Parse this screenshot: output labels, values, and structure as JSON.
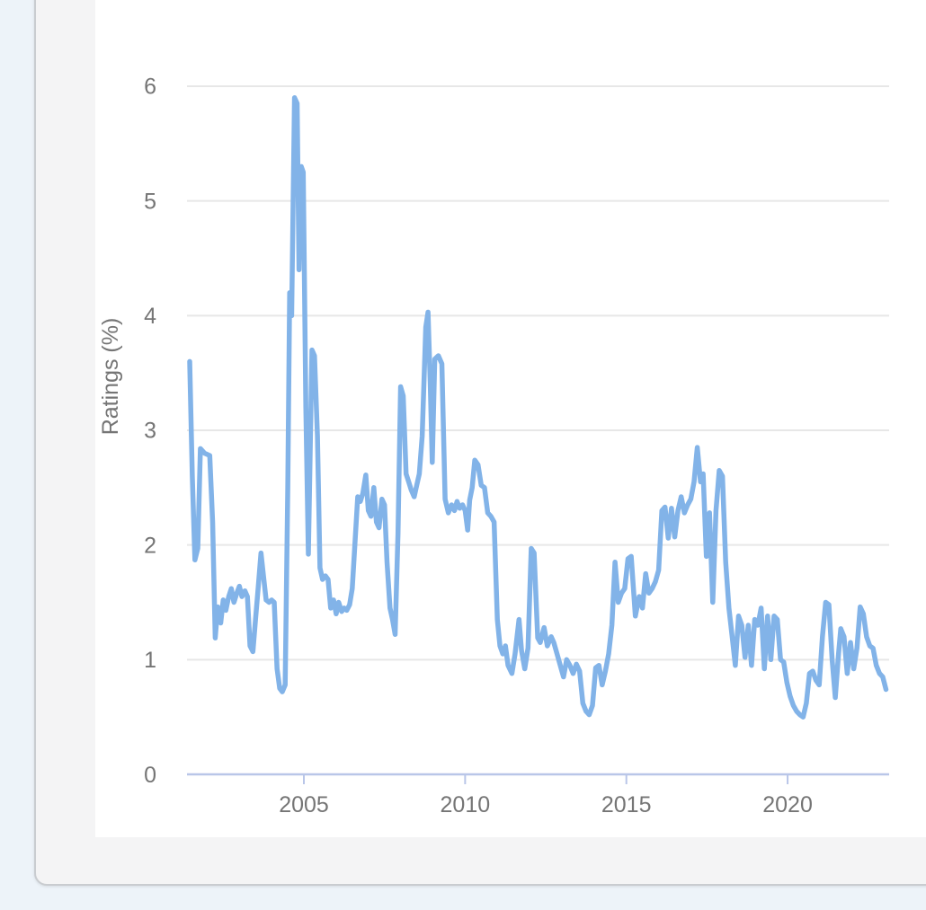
{
  "page": {
    "background": "#edf3f9"
  },
  "card": {
    "background": "#f4f4f5",
    "border_color": "#c9ccd0"
  },
  "panel": {
    "background": "#ffffff"
  },
  "chart_data": {
    "type": "line",
    "title": "",
    "xlabel": "",
    "ylabel": "Ratings (%)",
    "x_range": [
      2001.3,
      2023.15
    ],
    "ylim": [
      0,
      6.3
    ],
    "grid": "horizontal",
    "legend": "none",
    "y_tick_labels": [
      "0",
      "1",
      "2",
      "3",
      "4",
      "5",
      "6"
    ],
    "y_tick_values": [
      0,
      1,
      2,
      3,
      4,
      5,
      6
    ],
    "x_tick_labels": [
      "2005",
      "2010",
      "2015",
      "2020"
    ],
    "x_tick_values": [
      2005,
      2010,
      2015,
      2020
    ],
    "colors": {
      "line": "#82b3e8",
      "axis": "#b9c6e8",
      "grid": "#e7e7e7",
      "text": "#757575"
    },
    "series": [
      {
        "name": "Ratings (%)",
        "points": [
          [
            2001.46,
            3.6
          ],
          [
            2001.54,
            2.6
          ],
          [
            2001.62,
            1.87
          ],
          [
            2001.71,
            1.97
          ],
          [
            2001.79,
            2.84
          ],
          [
            2001.92,
            2.8
          ],
          [
            2002.08,
            2.78
          ],
          [
            2002.17,
            2.2
          ],
          [
            2002.25,
            1.19
          ],
          [
            2002.33,
            1.46
          ],
          [
            2002.42,
            1.32
          ],
          [
            2002.5,
            1.52
          ],
          [
            2002.58,
            1.43
          ],
          [
            2002.67,
            1.55
          ],
          [
            2002.75,
            1.62
          ],
          [
            2002.83,
            1.5
          ],
          [
            2002.92,
            1.58
          ],
          [
            2003.0,
            1.64
          ],
          [
            2003.08,
            1.55
          ],
          [
            2003.17,
            1.6
          ],
          [
            2003.25,
            1.55
          ],
          [
            2003.33,
            1.12
          ],
          [
            2003.42,
            1.07
          ],
          [
            2003.5,
            1.35
          ],
          [
            2003.58,
            1.62
          ],
          [
            2003.67,
            1.93
          ],
          [
            2003.75,
            1.72
          ],
          [
            2003.83,
            1.52
          ],
          [
            2003.92,
            1.5
          ],
          [
            2004.0,
            1.52
          ],
          [
            2004.08,
            1.5
          ],
          [
            2004.17,
            0.92
          ],
          [
            2004.25,
            0.75
          ],
          [
            2004.33,
            0.72
          ],
          [
            2004.42,
            0.78
          ],
          [
            2004.5,
            2.5
          ],
          [
            2004.56,
            4.2
          ],
          [
            2004.62,
            4.0
          ],
          [
            2004.71,
            5.9
          ],
          [
            2004.79,
            5.85
          ],
          [
            2004.85,
            4.4
          ],
          [
            2004.92,
            5.3
          ],
          [
            2004.98,
            5.25
          ],
          [
            2005.06,
            3.2
          ],
          [
            2005.14,
            1.92
          ],
          [
            2005.25,
            3.7
          ],
          [
            2005.33,
            3.65
          ],
          [
            2005.42,
            2.95
          ],
          [
            2005.5,
            1.8
          ],
          [
            2005.58,
            1.7
          ],
          [
            2005.67,
            1.73
          ],
          [
            2005.75,
            1.7
          ],
          [
            2005.83,
            1.45
          ],
          [
            2005.92,
            1.52
          ],
          [
            2006.0,
            1.4
          ],
          [
            2006.08,
            1.5
          ],
          [
            2006.17,
            1.42
          ],
          [
            2006.25,
            1.45
          ],
          [
            2006.33,
            1.43
          ],
          [
            2006.42,
            1.48
          ],
          [
            2006.5,
            1.62
          ],
          [
            2006.58,
            2.0
          ],
          [
            2006.67,
            2.42
          ],
          [
            2006.75,
            2.38
          ],
          [
            2006.83,
            2.45
          ],
          [
            2006.92,
            2.61
          ],
          [
            2007.0,
            2.3
          ],
          [
            2007.08,
            2.25
          ],
          [
            2007.17,
            2.5
          ],
          [
            2007.25,
            2.2
          ],
          [
            2007.33,
            2.15
          ],
          [
            2007.42,
            2.4
          ],
          [
            2007.5,
            2.35
          ],
          [
            2007.58,
            1.85
          ],
          [
            2007.67,
            1.45
          ],
          [
            2007.75,
            1.35
          ],
          [
            2007.83,
            1.22
          ],
          [
            2007.92,
            2.1
          ],
          [
            2008.0,
            3.38
          ],
          [
            2008.08,
            3.3
          ],
          [
            2008.17,
            2.62
          ],
          [
            2008.25,
            2.55
          ],
          [
            2008.33,
            2.48
          ],
          [
            2008.42,
            2.42
          ],
          [
            2008.5,
            2.52
          ],
          [
            2008.58,
            2.62
          ],
          [
            2008.67,
            2.95
          ],
          [
            2008.78,
            3.9
          ],
          [
            2008.85,
            4.03
          ],
          [
            2008.92,
            3.4
          ],
          [
            2008.98,
            2.72
          ],
          [
            2009.06,
            3.62
          ],
          [
            2009.17,
            3.65
          ],
          [
            2009.28,
            3.58
          ],
          [
            2009.38,
            2.4
          ],
          [
            2009.48,
            2.28
          ],
          [
            2009.58,
            2.35
          ],
          [
            2009.67,
            2.3
          ],
          [
            2009.75,
            2.38
          ],
          [
            2009.83,
            2.32
          ],
          [
            2009.92,
            2.35
          ],
          [
            2010.0,
            2.3
          ],
          [
            2010.08,
            2.13
          ],
          [
            2010.14,
            2.39
          ],
          [
            2010.22,
            2.5
          ],
          [
            2010.3,
            2.74
          ],
          [
            2010.4,
            2.7
          ],
          [
            2010.5,
            2.52
          ],
          [
            2010.6,
            2.5
          ],
          [
            2010.7,
            2.28
          ],
          [
            2010.8,
            2.25
          ],
          [
            2010.9,
            2.2
          ],
          [
            2011.0,
            1.35
          ],
          [
            2011.08,
            1.12
          ],
          [
            2011.17,
            1.05
          ],
          [
            2011.25,
            1.12
          ],
          [
            2011.33,
            0.95
          ],
          [
            2011.45,
            0.88
          ],
          [
            2011.55,
            1.05
          ],
          [
            2011.67,
            1.35
          ],
          [
            2011.75,
            1.08
          ],
          [
            2011.85,
            0.92
          ],
          [
            2011.95,
            1.1
          ],
          [
            2012.05,
            1.97
          ],
          [
            2012.14,
            1.93
          ],
          [
            2012.25,
            1.19
          ],
          [
            2012.33,
            1.15
          ],
          [
            2012.45,
            1.28
          ],
          [
            2012.55,
            1.12
          ],
          [
            2012.67,
            1.2
          ],
          [
            2012.75,
            1.15
          ],
          [
            2012.85,
            1.05
          ],
          [
            2012.95,
            0.95
          ],
          [
            2013.05,
            0.85
          ],
          [
            2013.15,
            1.0
          ],
          [
            2013.25,
            0.95
          ],
          [
            2013.35,
            0.88
          ],
          [
            2013.45,
            0.96
          ],
          [
            2013.55,
            0.9
          ],
          [
            2013.65,
            0.62
          ],
          [
            2013.75,
            0.55
          ],
          [
            2013.85,
            0.52
          ],
          [
            2013.95,
            0.6
          ],
          [
            2014.05,
            0.93
          ],
          [
            2014.15,
            0.95
          ],
          [
            2014.25,
            0.78
          ],
          [
            2014.35,
            0.9
          ],
          [
            2014.45,
            1.05
          ],
          [
            2014.55,
            1.3
          ],
          [
            2014.65,
            1.85
          ],
          [
            2014.75,
            1.5
          ],
          [
            2014.85,
            1.58
          ],
          [
            2014.95,
            1.62
          ],
          [
            2015.05,
            1.88
          ],
          [
            2015.15,
            1.9
          ],
          [
            2015.28,
            1.38
          ],
          [
            2015.4,
            1.55
          ],
          [
            2015.5,
            1.45
          ],
          [
            2015.6,
            1.75
          ],
          [
            2015.7,
            1.58
          ],
          [
            2015.8,
            1.62
          ],
          [
            2015.9,
            1.68
          ],
          [
            2016.0,
            1.78
          ],
          [
            2016.1,
            2.3
          ],
          [
            2016.2,
            2.33
          ],
          [
            2016.3,
            2.06
          ],
          [
            2016.4,
            2.32
          ],
          [
            2016.5,
            2.07
          ],
          [
            2016.6,
            2.3
          ],
          [
            2016.7,
            2.42
          ],
          [
            2016.8,
            2.28
          ],
          [
            2016.9,
            2.35
          ],
          [
            2017.0,
            2.4
          ],
          [
            2017.1,
            2.55
          ],
          [
            2017.2,
            2.85
          ],
          [
            2017.3,
            2.55
          ],
          [
            2017.38,
            2.62
          ],
          [
            2017.48,
            1.9
          ],
          [
            2017.58,
            2.28
          ],
          [
            2017.68,
            1.5
          ],
          [
            2017.78,
            2.3
          ],
          [
            2017.88,
            2.65
          ],
          [
            2017.98,
            2.6
          ],
          [
            2018.08,
            1.85
          ],
          [
            2018.18,
            1.45
          ],
          [
            2018.28,
            1.2
          ],
          [
            2018.38,
            0.95
          ],
          [
            2018.48,
            1.38
          ],
          [
            2018.58,
            1.3
          ],
          [
            2018.68,
            1.02
          ],
          [
            2018.78,
            1.3
          ],
          [
            2018.88,
            0.95
          ],
          [
            2018.98,
            1.35
          ],
          [
            2019.08,
            1.3
          ],
          [
            2019.18,
            1.45
          ],
          [
            2019.28,
            0.92
          ],
          [
            2019.38,
            1.38
          ],
          [
            2019.48,
            1.0
          ],
          [
            2019.58,
            1.38
          ],
          [
            2019.68,
            1.35
          ],
          [
            2019.78,
            1.0
          ],
          [
            2019.88,
            0.98
          ],
          [
            2019.98,
            0.8
          ],
          [
            2020.08,
            0.68
          ],
          [
            2020.18,
            0.6
          ],
          [
            2020.28,
            0.55
          ],
          [
            2020.38,
            0.52
          ],
          [
            2020.48,
            0.5
          ],
          [
            2020.58,
            0.62
          ],
          [
            2020.68,
            0.88
          ],
          [
            2020.78,
            0.9
          ],
          [
            2020.88,
            0.82
          ],
          [
            2020.98,
            0.78
          ],
          [
            2021.08,
            1.2
          ],
          [
            2021.18,
            1.5
          ],
          [
            2021.28,
            1.48
          ],
          [
            2021.38,
            1.0
          ],
          [
            2021.48,
            0.67
          ],
          [
            2021.58,
            1.05
          ],
          [
            2021.65,
            1.27
          ],
          [
            2021.75,
            1.2
          ],
          [
            2021.85,
            0.88
          ],
          [
            2021.95,
            1.15
          ],
          [
            2022.05,
            0.92
          ],
          [
            2022.15,
            1.1
          ],
          [
            2022.25,
            1.46
          ],
          [
            2022.35,
            1.4
          ],
          [
            2022.45,
            1.2
          ],
          [
            2022.55,
            1.12
          ],
          [
            2022.65,
            1.1
          ],
          [
            2022.75,
            0.95
          ],
          [
            2022.85,
            0.88
          ],
          [
            2022.95,
            0.85
          ],
          [
            2023.05,
            0.74
          ]
        ]
      }
    ]
  }
}
